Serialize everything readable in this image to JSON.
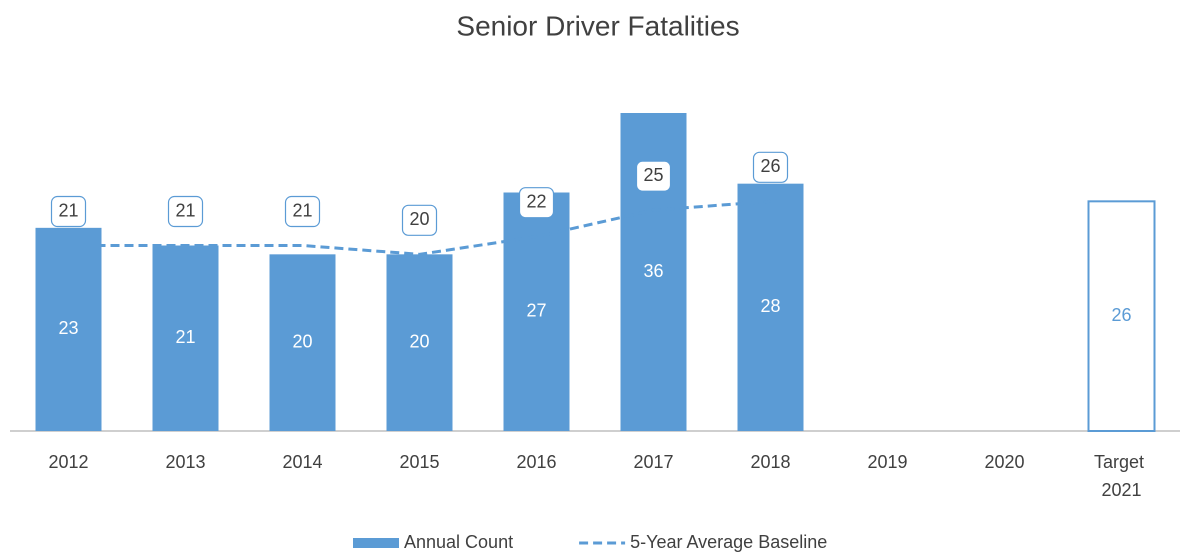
{
  "chart_data": {
    "type": "bar",
    "title": "Senior Driver Fatalities",
    "categories": [
      "2012",
      "2013",
      "2014",
      "2015",
      "2016",
      "2017",
      "2018",
      "2019",
      "2020",
      "Target 2021"
    ],
    "series": [
      {
        "name": "Annual Count",
        "type": "bar",
        "color": "#5b9bd5",
        "values": [
          23,
          21,
          20,
          20,
          27,
          36,
          28,
          null,
          null,
          26
        ],
        "hollow": [
          false,
          false,
          false,
          false,
          false,
          false,
          false,
          false,
          false,
          true
        ]
      },
      {
        "name": "5-Year Average Baseline",
        "type": "line",
        "color": "#5b9bd5",
        "dashed": true,
        "values": [
          21,
          21,
          21,
          20,
          22,
          25,
          26,
          null,
          null,
          null
        ]
      }
    ],
    "ylim": [
      0,
      40
    ],
    "legend": "bottom"
  }
}
